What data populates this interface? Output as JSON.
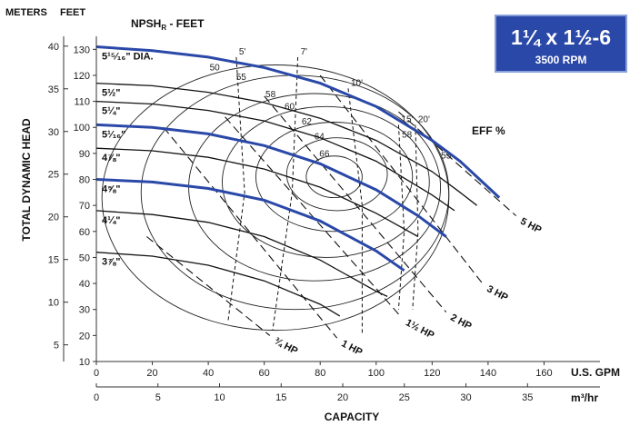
{
  "chart_data": {
    "type": "line",
    "title_box": {
      "line1": "1¼ x 1½-6",
      "line2": "3500 RPM",
      "color": "#2a48a8"
    },
    "header_left": "METERS",
    "header_right": "FEET",
    "ylabel": "TOTAL DYNAMIC HEAD",
    "xlabel": "CAPACITY",
    "x_units_gpm": "U.S. GPM",
    "x_units_m3": "m³/hr",
    "npsh_title": "NPSH",
    "npsh_sub": "R",
    "npsh_suffix": " - FEET",
    "eff_label": "EFF %",
    "gpm_ticks": [
      0,
      20,
      40,
      60,
      80,
      100,
      120,
      140,
      160
    ],
    "m3_ticks": [
      0,
      5,
      10,
      15,
      20,
      25,
      30,
      35
    ],
    "feet_ticks": [
      10,
      20,
      30,
      40,
      50,
      60,
      70,
      80,
      90,
      100,
      110,
      120,
      130
    ],
    "meter_ticks": [
      5,
      10,
      15,
      20,
      25,
      30,
      35,
      40
    ],
    "xlim_gpm": [
      0,
      180
    ],
    "ylim_feet": [
      10,
      135
    ],
    "impeller_curves": [
      {
        "label": "5¹⁵⁄₁₆\" DIA.",
        "highlight": true,
        "points": [
          [
            0,
            131
          ],
          [
            20,
            129.5
          ],
          [
            40,
            127
          ],
          [
            60,
            123
          ],
          [
            80,
            117
          ],
          [
            100,
            108
          ],
          [
            120,
            95
          ],
          [
            130,
            87
          ],
          [
            140,
            77
          ],
          [
            144,
            73
          ]
        ]
      },
      {
        "label": "5½\"",
        "highlight": false,
        "points": [
          [
            0,
            117
          ],
          [
            20,
            116
          ],
          [
            40,
            113.5
          ],
          [
            60,
            109.5
          ],
          [
            80,
            103.5
          ],
          [
            100,
            95
          ],
          [
            120,
            83
          ],
          [
            130,
            75
          ],
          [
            136,
            70
          ]
        ]
      },
      {
        "label": "5¼\"",
        "highlight": false,
        "points": [
          [
            0,
            110
          ],
          [
            20,
            109
          ],
          [
            40,
            106.5
          ],
          [
            60,
            102.5
          ],
          [
            80,
            96
          ],
          [
            100,
            87
          ],
          [
            120,
            74
          ],
          [
            128,
            68
          ]
        ]
      },
      {
        "label": "5¹⁄₁₆\"",
        "highlight": true,
        "points": [
          [
            0,
            101
          ],
          [
            20,
            100
          ],
          [
            40,
            97.5
          ],
          [
            60,
            93
          ],
          [
            80,
            86
          ],
          [
            100,
            76
          ],
          [
            115,
            66
          ],
          [
            125,
            58
          ]
        ]
      },
      {
        "label": "4⅞\"",
        "highlight": false,
        "points": [
          [
            0,
            92
          ],
          [
            20,
            91
          ],
          [
            40,
            88.5
          ],
          [
            60,
            84
          ],
          [
            80,
            77
          ],
          [
            100,
            67
          ],
          [
            115,
            58
          ]
        ]
      },
      {
        "label": "4⅝\"",
        "highlight": true,
        "points": [
          [
            0,
            80
          ],
          [
            20,
            79
          ],
          [
            40,
            76.5
          ],
          [
            60,
            72
          ],
          [
            80,
            64
          ],
          [
            100,
            52.5
          ],
          [
            110,
            45
          ]
        ]
      },
      {
        "label": "4¼\"",
        "highlight": false,
        "points": [
          [
            0,
            68
          ],
          [
            20,
            66.5
          ],
          [
            40,
            63.5
          ],
          [
            60,
            58
          ],
          [
            80,
            49
          ],
          [
            100,
            37
          ],
          [
            104,
            35
          ]
        ]
      },
      {
        "label": "3⅞\"",
        "highlight": false,
        "points": [
          [
            0,
            52
          ],
          [
            20,
            50.5
          ],
          [
            40,
            47
          ],
          [
            60,
            41
          ],
          [
            80,
            32
          ],
          [
            87,
            27.5
          ]
        ]
      }
    ],
    "efficiency_rings": [
      {
        "label": "50",
        "cx": 64,
        "cy": 73,
        "rx": 62,
        "ry": 51
      },
      {
        "label": "55",
        "cx": 71,
        "cy": 75,
        "rx": 55,
        "ry": 45
      },
      {
        "label": "58",
        "cx": 78,
        "cy": 77,
        "rx": 45,
        "ry": 36
      },
      {
        "label": "60",
        "cx": 82,
        "cy": 79,
        "rx": 37,
        "ry": 29
      },
      {
        "label": "62",
        "cx": 85,
        "cy": 81,
        "rx": 28,
        "ry": 21
      },
      {
        "label": "64",
        "cx": 86,
        "cy": 82,
        "rx": 18,
        "ry": 14
      },
      {
        "label": "66",
        "cx": 85,
        "cy": 81,
        "rx": 10,
        "ry": 8
      }
    ],
    "eff_right_labels": [
      {
        "label": "58",
        "x": 111,
        "y": 96
      },
      {
        "label": "55",
        "x": 125,
        "y": 88
      }
    ],
    "npsh_lines": [
      {
        "label": "5'",
        "points": [
          [
            50,
            127
          ],
          [
            53,
            75
          ],
          [
            47,
            25
          ]
        ]
      },
      {
        "label": "7'",
        "points": [
          [
            72,
            127
          ],
          [
            70,
            75
          ],
          [
            63,
            22
          ]
        ]
      },
      {
        "label": "10'",
        "points": [
          [
            90,
            115
          ],
          [
            95,
            70
          ],
          [
            95,
            20
          ]
        ]
      },
      {
        "label": "15'",
        "points": [
          [
            108,
            101
          ],
          [
            110,
            60
          ],
          [
            108,
            30
          ]
        ]
      },
      {
        "label": "20'",
        "points": [
          [
            114,
            101
          ],
          [
            115,
            60
          ],
          [
            113,
            30
          ]
        ]
      }
    ],
    "hp_lines": [
      {
        "label": "¾ HP",
        "points": [
          [
            18,
            58
          ],
          [
            62,
            20
          ]
        ]
      },
      {
        "label": "1 HP",
        "points": [
          [
            24,
            100
          ],
          [
            86,
            19
          ]
        ]
      },
      {
        "label": "1½ HP",
        "points": [
          [
            46,
            104
          ],
          [
            109,
            27
          ]
        ]
      },
      {
        "label": "2 HP",
        "points": [
          [
            60,
            112
          ],
          [
            125,
            29
          ]
        ]
      },
      {
        "label": "3 HP",
        "points": [
          [
            80,
            120
          ],
          [
            138,
            40
          ]
        ]
      },
      {
        "label": "5 HP",
        "points": [
          [
            108,
            106
          ],
          [
            150,
            66
          ]
        ]
      }
    ]
  }
}
